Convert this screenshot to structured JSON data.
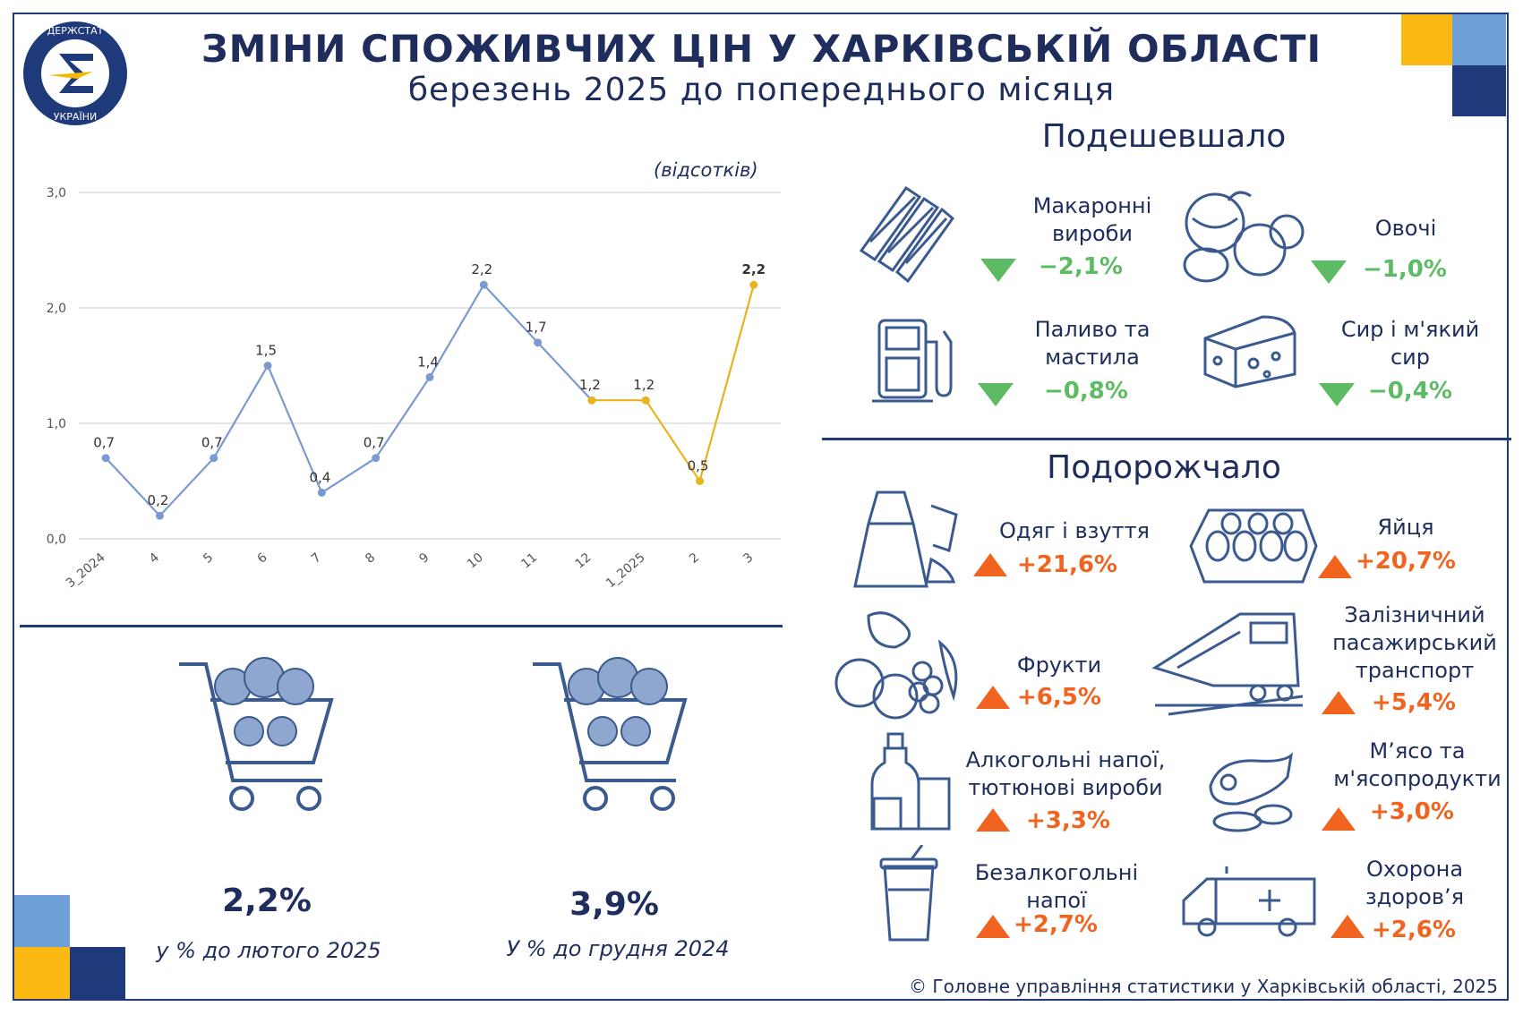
{
  "header": {
    "title": "ЗМІНИ СПОЖИВЧИХ ЦІН У ХАРКІВСЬКІЙ ОБЛАСТІ",
    "subtitle": "березень 2025 до попереднього місяця",
    "logo_text": "ДЕРЖСТАТ УКРАЇНИ"
  },
  "chart_units": "(відсотків)",
  "chart_data": {
    "type": "line",
    "categories": [
      "3_2024",
      "4",
      "5",
      "6",
      "7",
      "8",
      "9",
      "10",
      "11",
      "12",
      "1_2025",
      "2",
      "3"
    ],
    "series": [
      {
        "values": [
          0.7,
          0.2,
          0.7,
          1.5,
          0.4,
          0.7,
          1.4,
          2.2,
          1.7,
          1.2,
          null,
          null,
          null
        ],
        "color": "#7b9ad1"
      },
      {
        "values": [
          null,
          null,
          null,
          null,
          null,
          null,
          null,
          null,
          null,
          1.2,
          1.2,
          0.5,
          2.2
        ],
        "color": "#e8b31e"
      }
    ],
    "labels": [
      "0,7",
      "0,2",
      "0,7",
      "1,5",
      "0,4",
      "0,7",
      "1,4",
      "2,2",
      "1,7",
      "1,2",
      "1,2",
      "0,5",
      "2,2"
    ],
    "ylim": [
      0,
      3
    ],
    "yticks": [
      "0,0",
      "1,0",
      "2,0",
      "3,0"
    ],
    "grid": true
  },
  "cheaper": {
    "heading": "Подешевшало",
    "items": [
      {
        "label": "Макаронні вироби",
        "value": "−2,1%",
        "icon": "pasta-icon"
      },
      {
        "label": "Овочі",
        "value": "−1,0%",
        "icon": "vegetables-icon"
      },
      {
        "label": "Паливо та мастила",
        "value": "−0,8%",
        "icon": "fuel-pump-icon"
      },
      {
        "label": "Сир і м'який сир",
        "value": "−0,4%",
        "icon": "cheese-icon"
      }
    ]
  },
  "pricier": {
    "heading": "Подорожчало",
    "items": [
      {
        "label": "Одяг і взуття",
        "value": "+21,6%",
        "icon": "clothes-icon"
      },
      {
        "label": "Яйця",
        "value": "+20,7%",
        "icon": "eggs-icon"
      },
      {
        "label": "Фрукти",
        "value": "+6,5%",
        "icon": "fruits-icon"
      },
      {
        "label": "Залізничний пасажирський транспорт",
        "value": "+5,4%",
        "icon": "train-icon"
      },
      {
        "label": "Алкогольні напої, тютюнові вироби",
        "value": "+3,3%",
        "icon": "bottle-icon"
      },
      {
        "label": "М’ясо та м'ясопродукти",
        "value": "+3,0%",
        "icon": "meat-icon"
      },
      {
        "label": "Безалкогольні напої",
        "value": "+2,7%",
        "icon": "cup-icon"
      },
      {
        "label": "Охорона здоров’я",
        "value": "+2,6%",
        "icon": "ambulance-icon"
      }
    ]
  },
  "summary": [
    {
      "value": "2,2%",
      "caption": "у % до лютого 2025",
      "icon": "shopping-cart-icon"
    },
    {
      "value": "3,9%",
      "caption": "У % до грудня 2024",
      "icon": "shopping-cart-icon"
    }
  ],
  "credit": "© Головне управління статистики у Харківській області, 2025",
  "colors": {
    "navy": "#1f2d5c",
    "accent_blue": "#7b9ad1",
    "accent_gold": "#e8b31e",
    "down": "#5dbb63",
    "up": "#f06420"
  }
}
